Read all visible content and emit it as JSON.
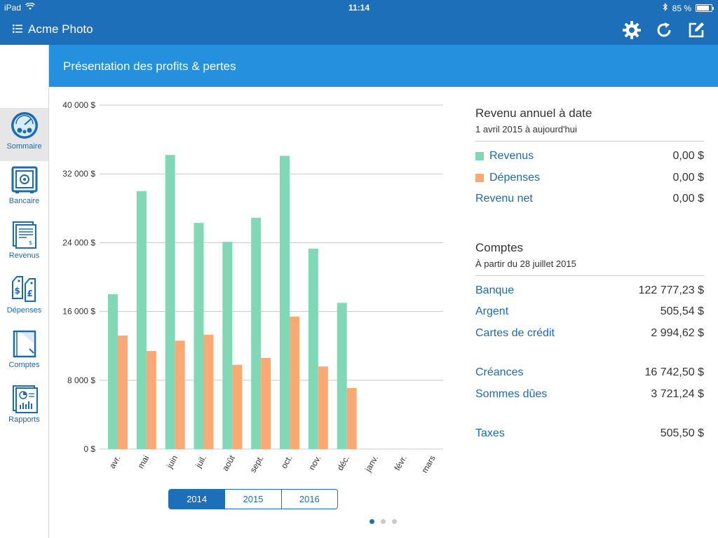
{
  "statusbar": {
    "device": "iPad",
    "time": "11:14",
    "battery": "85 %",
    "battery_level": 0.85
  },
  "navbar": {
    "title": "Acme Photo",
    "icons": [
      "list-icon",
      "gear-icon",
      "refresh-icon",
      "edit-icon"
    ]
  },
  "sidebar": {
    "items": [
      {
        "label": "Sommaire",
        "icon": "dashboard-icon",
        "active": true
      },
      {
        "label": "Bancaire",
        "icon": "safe-icon",
        "active": false
      },
      {
        "label": "Revenus",
        "icon": "invoice-icon",
        "active": false
      },
      {
        "label": "Dépenses",
        "icon": "price-tags-icon",
        "active": false
      },
      {
        "label": "Comptes",
        "icon": "ledger-icon",
        "active": false
      },
      {
        "label": "Rapports",
        "icon": "report-icon",
        "active": false
      }
    ]
  },
  "header": {
    "title": "Présentation des profits & pertes"
  },
  "chart_data": {
    "type": "bar",
    "categories": [
      "avr.",
      "mai",
      "juin",
      "juil.",
      "août",
      "sept.",
      "oct.",
      "nov.",
      "déc.",
      "janv.",
      "févr.",
      "mars"
    ],
    "series": [
      {
        "values": [
          18000,
          30000,
          34200,
          26300,
          24100,
          26900,
          34100,
          23300,
          17000,
          0,
          0,
          0
        ],
        "color": "#80d8b6"
      },
      {
        "values": [
          13200,
          11400,
          12600,
          13300,
          9800,
          10600,
          15400,
          9600,
          7100,
          0,
          0,
          0
        ],
        "color": "#fba974"
      }
    ],
    "yticks": [
      "40 000 $",
      "32 000 $",
      "24 000 $",
      "16 000 $",
      "8 000 $",
      "0 $"
    ],
    "ylim": [
      0,
      40000
    ],
    "grid": true
  },
  "year_selector": {
    "options": [
      "2014",
      "2015",
      "2016"
    ],
    "selected": "2014"
  },
  "page_dots": {
    "count": 3,
    "active": 0
  },
  "annual": {
    "title": "Revenu annuel à date",
    "subtitle": "1 avril 2015 à aujourd'hui",
    "rows": [
      {
        "label": "Revenus",
        "value": "0,00 $",
        "color": "#80d8b6"
      },
      {
        "label": "Dépenses",
        "value": "0,00 $",
        "color": "#fba974"
      },
      {
        "label": "Revenu net",
        "value": "0,00 $"
      }
    ]
  },
  "accounts": {
    "title": "Comptes",
    "subtitle": "À partir du 28 juillet 2015",
    "rows": [
      {
        "label": "Banque",
        "value": "122 777,23 $"
      },
      {
        "label": "Argent",
        "value": "505,54 $"
      },
      {
        "label": "Cartes de crédit",
        "value": "2 994,62 $"
      }
    ],
    "rows2": [
      {
        "label": "Créances",
        "value": "16 742,50 $"
      },
      {
        "label": "Sommes dûes",
        "value": "3 721,24 $"
      }
    ],
    "rows3": [
      {
        "label": "Taxes",
        "value": "505,50 $"
      }
    ]
  }
}
